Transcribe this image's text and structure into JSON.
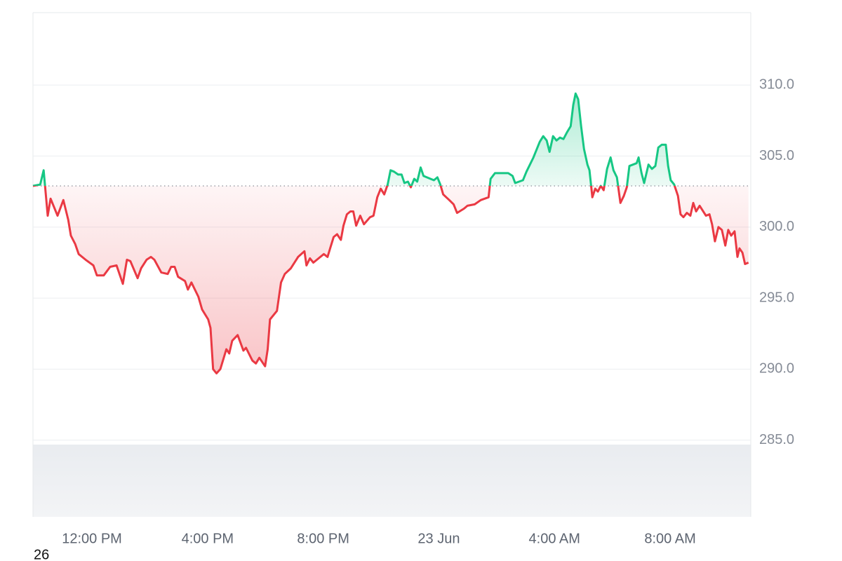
{
  "chart_data": {
    "type": "line",
    "corner_label": "26",
    "up_color": "#16c784",
    "down_color": "#ea3943",
    "xlim": [
      9.96,
      34.79
    ],
    "ylim": [
      279.6,
      315.1
    ],
    "xticks": [
      {
        "value": 12,
        "label": "12:00 PM"
      },
      {
        "value": 16,
        "label": "4:00 PM"
      },
      {
        "value": 20,
        "label": "8:00 PM"
      },
      {
        "value": 24,
        "label": "23 Jun"
      },
      {
        "value": 28,
        "label": "4:00 AM"
      },
      {
        "value": 32,
        "label": "8:00 AM"
      }
    ],
    "yticks": [
      {
        "value": 285,
        "label": "285.0"
      },
      {
        "value": 290,
        "label": "290.0"
      },
      {
        "value": 295,
        "label": "295.0"
      },
      {
        "value": 300,
        "label": "300.0"
      },
      {
        "value": 305,
        "label": "305.0"
      },
      {
        "value": 310,
        "label": "310.0"
      }
    ],
    "grid": true,
    "x": [
      9.96,
      10.21,
      10.33,
      10.47,
      10.57,
      10.81,
      11.01,
      11.18,
      11.27,
      11.42,
      11.54,
      11.78,
      12.05,
      12.17,
      12.41,
      12.63,
      12.85,
      13.07,
      13.21,
      13.33,
      13.58,
      13.7,
      13.89,
      14.04,
      14.16,
      14.4,
      14.62,
      14.74,
      14.86,
      14.98,
      15.22,
      15.32,
      15.44,
      15.68,
      15.81,
      16.02,
      16.1,
      16.19,
      16.31,
      16.44,
      16.65,
      16.75,
      16.85,
      17.04,
      17.24,
      17.33,
      17.55,
      17.67,
      17.79,
      17.99,
      18.08,
      18.16,
      18.4,
      18.54,
      18.67,
      18.88,
      19.13,
      19.35,
      19.42,
      19.54,
      19.66,
      19.9,
      20.02,
      20.15,
      20.24,
      20.36,
      20.48,
      20.61,
      20.7,
      20.82,
      20.94,
      21.04,
      21.14,
      21.28,
      21.41,
      21.62,
      21.74,
      21.87,
      21.99,
      22.11,
      22.23,
      22.33,
      22.45,
      22.59,
      22.71,
      22.81,
      22.93,
      23.03,
      23.15,
      23.25,
      23.37,
      23.47,
      23.71,
      23.83,
      23.95,
      24.05,
      24.15,
      24.36,
      24.51,
      24.63,
      24.87,
      24.99,
      25.24,
      25.45,
      25.72,
      25.79,
      25.94,
      26.16,
      26.4,
      26.55,
      26.64,
      26.91,
      27.03,
      27.27,
      27.49,
      27.61,
      27.73,
      27.83,
      27.95,
      28.07,
      28.19,
      28.31,
      28.44,
      28.56,
      28.65,
      28.73,
      28.82,
      28.92,
      29.02,
      29.14,
      29.21,
      29.31,
      29.41,
      29.5,
      29.6,
      29.7,
      29.82,
      29.94,
      30.04,
      30.16,
      30.28,
      30.4,
      30.5,
      30.59,
      30.84,
      30.91,
      31.01,
      31.1,
      31.25,
      31.37,
      31.49,
      31.59,
      31.71,
      31.85,
      31.93,
      32.02,
      32.14,
      32.27,
      32.36,
      32.46,
      32.58,
      32.7,
      32.8,
      32.9,
      33.02,
      33.24,
      33.36,
      33.45,
      33.55,
      33.67,
      33.79,
      33.91,
      34.01,
      34.11,
      34.23,
      34.33,
      34.4,
      34.5,
      34.59,
      34.71
    ],
    "values": [
      302.9,
      303.0,
      304.0,
      300.8,
      302.0,
      300.8,
      301.9,
      300.5,
      299.4,
      298.8,
      298.1,
      297.7,
      297.3,
      296.6,
      296.6,
      297.2,
      297.3,
      296.0,
      297.7,
      297.6,
      296.4,
      297.1,
      297.7,
      297.9,
      297.7,
      296.8,
      296.7,
      297.2,
      297.2,
      296.5,
      296.2,
      295.6,
      296.1,
      295.1,
      294.2,
      293.5,
      292.9,
      290.0,
      289.7,
      290.0,
      291.4,
      291.1,
      292.0,
      292.4,
      291.3,
      291.5,
      290.6,
      290.4,
      290.8,
      290.2,
      291.4,
      293.5,
      294.1,
      296.1,
      296.7,
      297.1,
      297.9,
      298.3,
      297.3,
      297.8,
      297.5,
      297.9,
      298.1,
      297.9,
      298.5,
      299.3,
      299.5,
      299.1,
      300.1,
      300.9,
      301.1,
      301.1,
      300.1,
      300.8,
      300.2,
      300.7,
      300.8,
      302.1,
      302.7,
      302.3,
      303.0,
      304.0,
      303.9,
      303.7,
      303.7,
      303.1,
      303.2,
      302.8,
      303.4,
      303.2,
      304.2,
      303.6,
      303.4,
      303.3,
      303.5,
      303.0,
      302.3,
      301.9,
      301.6,
      301.0,
      301.3,
      301.5,
      301.6,
      301.9,
      302.1,
      303.4,
      303.8,
      303.8,
      303.8,
      303.6,
      303.1,
      303.3,
      303.9,
      304.9,
      306.0,
      306.4,
      306.1,
      305.3,
      306.4,
      306.1,
      306.3,
      306.2,
      306.7,
      307.1,
      308.6,
      309.4,
      309.0,
      307.1,
      305.5,
      304.4,
      304.0,
      302.1,
      302.7,
      302.5,
      302.9,
      302.6,
      304.1,
      304.9,
      304.0,
      303.5,
      301.7,
      302.2,
      302.8,
      304.3,
      304.5,
      304.9,
      303.8,
      303.1,
      304.4,
      304.1,
      304.3,
      305.6,
      305.8,
      305.8,
      304.3,
      303.3,
      303.0,
      302.2,
      300.9,
      300.7,
      301.0,
      300.8,
      301.7,
      301.1,
      301.5,
      300.8,
      300.9,
      300.2,
      299.0,
      300.0,
      299.8,
      298.7,
      299.8,
      299.4,
      299.7,
      297.9,
      298.5,
      298.2,
      297.4,
      297.5
    ]
  }
}
